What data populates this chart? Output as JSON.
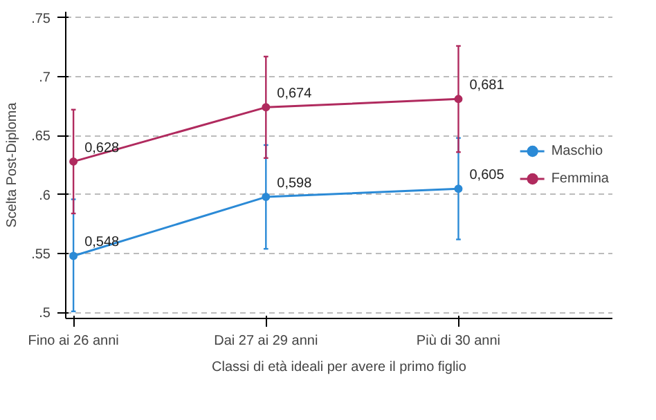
{
  "chart_data": {
    "type": "line",
    "xlabel": "Classi di età ideali per avere il primo figlio",
    "ylabel": "Scelta Post-Diploma",
    "categories": [
      "Fino ai 26 anni",
      "Dai 27 ai 29 anni",
      "Più di 30 anni"
    ],
    "series": [
      {
        "name": "Maschio",
        "color": "#2b8ad6",
        "values": [
          0.548,
          0.598,
          0.605
        ],
        "errors": [
          [
            0.501,
            0.596
          ],
          [
            0.554,
            0.642
          ],
          [
            0.562,
            0.648
          ]
        ],
        "value_labels": [
          "0,548",
          "0,598",
          "0,605"
        ]
      },
      {
        "name": "Femmina",
        "color": "#b02a5e",
        "values": [
          0.628,
          0.674,
          0.681
        ],
        "errors": [
          [
            0.584,
            0.672
          ],
          [
            0.631,
            0.717
          ],
          [
            0.636,
            0.726
          ]
        ],
        "value_labels": [
          "0,628",
          "0,674",
          "0,681"
        ]
      }
    ],
    "ylim": [
      0.495,
      0.755
    ],
    "yticks": [
      {
        "value": 0.5,
        "label": ".5"
      },
      {
        "value": 0.55,
        "label": ".55"
      },
      {
        "value": 0.6,
        "label": ".6"
      },
      {
        "value": 0.65,
        "label": ".65"
      },
      {
        "value": 0.7,
        "label": ".7"
      },
      {
        "value": 0.75,
        "label": ".75"
      }
    ],
    "grid": "y",
    "legend": "right",
    "marker": "circle",
    "line_style": "solid"
  }
}
